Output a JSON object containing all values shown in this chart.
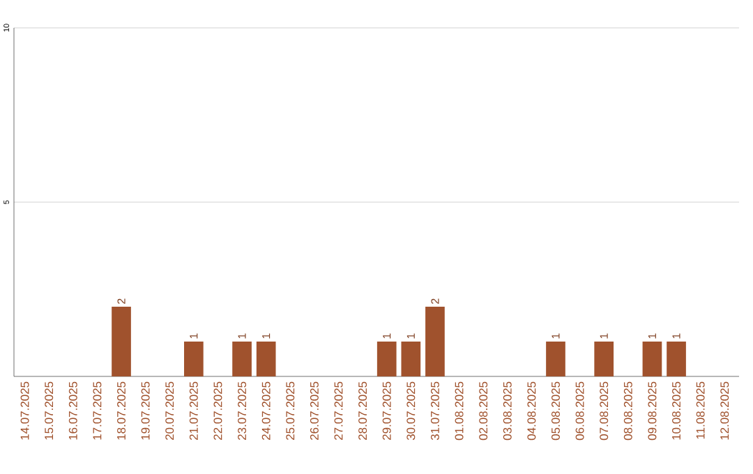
{
  "chart_data": {
    "type": "bar",
    "categories": [
      "14.07.2025",
      "15.07.2025",
      "16.07.2025",
      "17.07.2025",
      "18.07.2025",
      "19.07.2025",
      "20.07.2025",
      "21.07.2025",
      "22.07.2025",
      "23.07.2025",
      "24.07.2025",
      "25.07.2025",
      "26.07.2025",
      "27.07.2025",
      "28.07.2025",
      "29.07.2025",
      "30.07.2025",
      "31.07.2025",
      "01.08.2025",
      "02.08.2025",
      "03.08.2025",
      "04.08.2025",
      "05.08.2025",
      "06.08.2025",
      "07.08.2025",
      "08.08.2025",
      "09.08.2025",
      "10.08.2025",
      "11.08.2025",
      "12.08.2025"
    ],
    "values": [
      0,
      0,
      0,
      0,
      2,
      0,
      0,
      1,
      0,
      1,
      1,
      0,
      0,
      0,
      0,
      1,
      1,
      2,
      0,
      0,
      0,
      0,
      1,
      0,
      1,
      0,
      1,
      1,
      0,
      0
    ],
    "value_labels": [
      null,
      null,
      null,
      null,
      "2",
      null,
      null,
      "1",
      null,
      "1",
      "1",
      null,
      null,
      null,
      null,
      "1",
      "1",
      "2",
      null,
      null,
      null,
      null,
      "1",
      null,
      "1",
      null,
      "1",
      "1",
      null,
      null
    ],
    "color": "#a0522d",
    "ylim": [
      0,
      10
    ],
    "yticks": [
      5,
      10
    ],
    "grid": "y"
  }
}
